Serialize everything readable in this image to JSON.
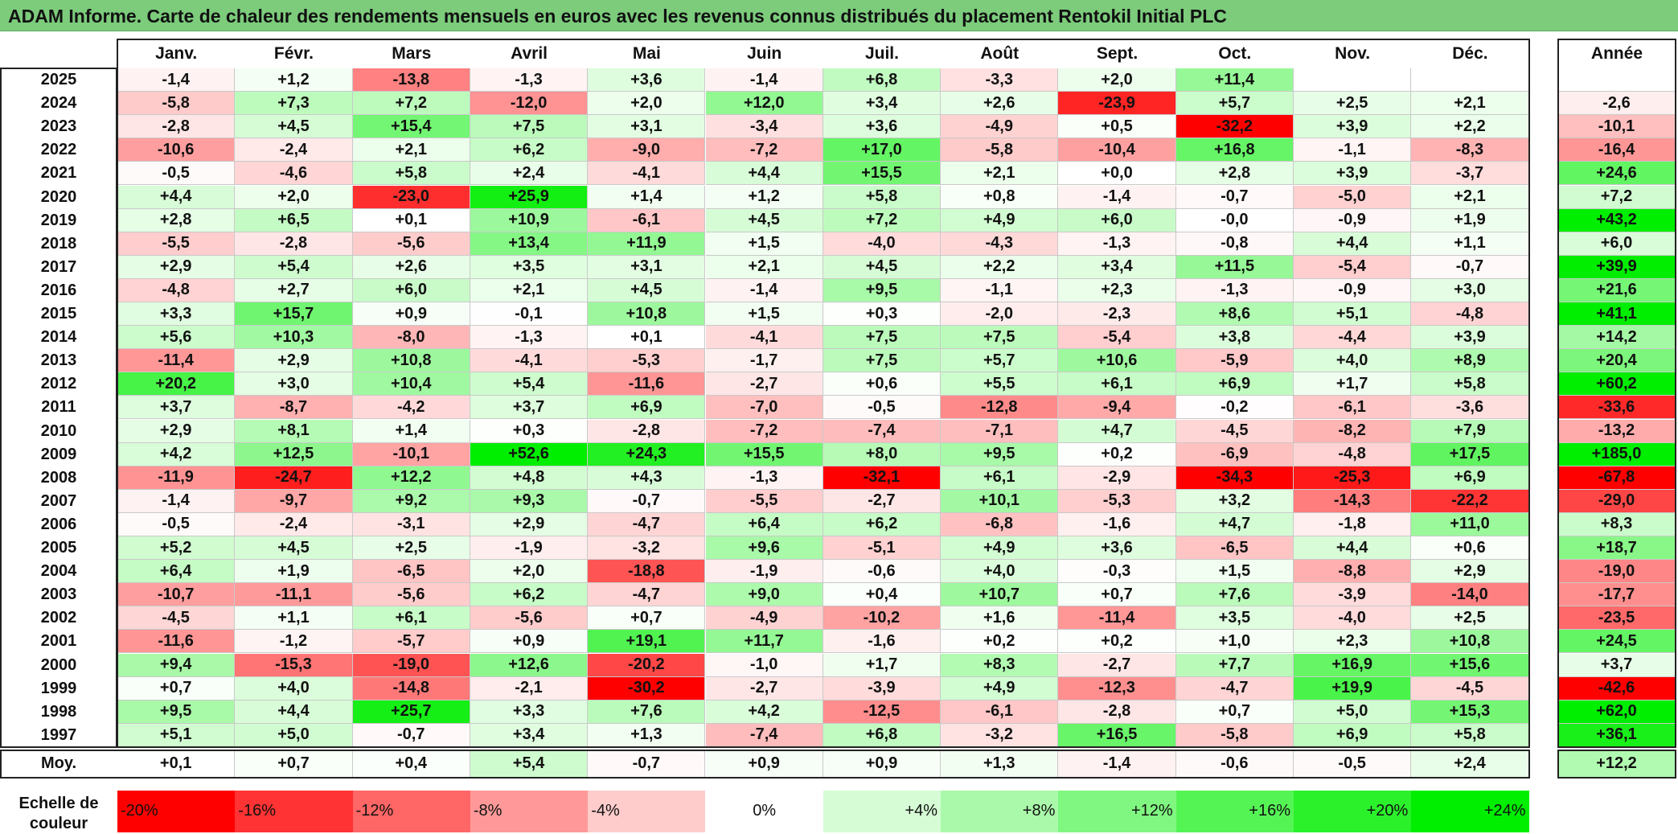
{
  "title": "ADAM Informe. Carte de chaleur des rendements mensuels en euros avec les revenus connus distribués du placement Rentokil Initial PLC",
  "chart_data": {
    "type": "heatmap",
    "months": [
      "Janv.",
      "Févr.",
      "Mars",
      "Avril",
      "Mai",
      "Juin",
      "Juil.",
      "Août",
      "Sept.",
      "Oct.",
      "Nov.",
      "Déc."
    ],
    "year_header": "Année",
    "rows": [
      {
        "year": "2025",
        "values": [
          "-1,4",
          "+1,2",
          "-13,8",
          "-1,3",
          "+3,6",
          "-1,4",
          "+6,8",
          "-3,3",
          "+2,0",
          "+11,4",
          "",
          ""
        ],
        "annual": ""
      },
      {
        "year": "2024",
        "values": [
          "-5,8",
          "+7,3",
          "+7,2",
          "-12,0",
          "+2,0",
          "+12,0",
          "+3,4",
          "+2,6",
          "-23,9",
          "+5,7",
          "+2,5",
          "+2,1"
        ],
        "annual": "-2,6"
      },
      {
        "year": "2023",
        "values": [
          "-2,8",
          "+4,5",
          "+15,4",
          "+7,5",
          "+3,1",
          "-3,4",
          "+3,6",
          "-4,9",
          "+0,5",
          "-32,2",
          "+3,9",
          "+2,2"
        ],
        "annual": "-10,1"
      },
      {
        "year": "2022",
        "values": [
          "-10,6",
          "-2,4",
          "+2,1",
          "+6,2",
          "-9,0",
          "-7,2",
          "+17,0",
          "-5,8",
          "-10,4",
          "+16,8",
          "-1,1",
          "-8,3"
        ],
        "annual": "-16,4"
      },
      {
        "year": "2021",
        "values": [
          "-0,5",
          "-4,6",
          "+5,8",
          "+2,4",
          "-4,1",
          "+4,4",
          "+15,5",
          "+2,1",
          "+0,0",
          "+2,8",
          "+3,9",
          "-3,7"
        ],
        "annual": "+24,6"
      },
      {
        "year": "2020",
        "values": [
          "+4,4",
          "+2,0",
          "-23,0",
          "+25,9",
          "+1,4",
          "+1,2",
          "+5,8",
          "+0,8",
          "-1,4",
          "-0,7",
          "-5,0",
          "+2,1"
        ],
        "annual": "+7,2"
      },
      {
        "year": "2019",
        "values": [
          "+2,8",
          "+6,5",
          "+0,1",
          "+10,9",
          "-6,1",
          "+4,5",
          "+7,2",
          "+4,9",
          "+6,0",
          "-0,0",
          "-0,9",
          "+1,9"
        ],
        "annual": "+43,2"
      },
      {
        "year": "2018",
        "values": [
          "-5,5",
          "-2,8",
          "-5,6",
          "+13,4",
          "+11,9",
          "+1,5",
          "-4,0",
          "-4,3",
          "-1,3",
          "-0,8",
          "+4,4",
          "+1,1"
        ],
        "annual": "+6,0"
      },
      {
        "year": "2017",
        "values": [
          "+2,9",
          "+5,4",
          "+2,6",
          "+3,5",
          "+3,1",
          "+2,1",
          "+4,5",
          "+2,2",
          "+3,4",
          "+11,5",
          "-5,4",
          "-0,7"
        ],
        "annual": "+39,9"
      },
      {
        "year": "2016",
        "values": [
          "-4,8",
          "+2,7",
          "+6,0",
          "+2,1",
          "+4,5",
          "-1,4",
          "+9,5",
          "-1,1",
          "+2,3",
          "-1,3",
          "-0,9",
          "+3,0"
        ],
        "annual": "+21,6"
      },
      {
        "year": "2015",
        "values": [
          "+3,3",
          "+15,7",
          "+0,9",
          "-0,1",
          "+10,8",
          "+1,5",
          "+0,3",
          "-2,0",
          "-2,3",
          "+8,6",
          "+5,1",
          "-4,8"
        ],
        "annual": "+41,1"
      },
      {
        "year": "2014",
        "values": [
          "+5,6",
          "+10,3",
          "-8,0",
          "-1,3",
          "+0,1",
          "-4,1",
          "+7,5",
          "+7,5",
          "-5,4",
          "+3,8",
          "-4,4",
          "+3,9"
        ],
        "annual": "+14,2"
      },
      {
        "year": "2013",
        "values": [
          "-11,4",
          "+2,9",
          "+10,8",
          "-4,1",
          "-5,3",
          "-1,7",
          "+7,5",
          "+5,7",
          "+10,6",
          "-5,9",
          "+4,0",
          "+8,9"
        ],
        "annual": "+20,4"
      },
      {
        "year": "2012",
        "values": [
          "+20,2",
          "+3,0",
          "+10,4",
          "+5,4",
          "-11,6",
          "-2,7",
          "+0,6",
          "+5,5",
          "+6,1",
          "+6,9",
          "+1,7",
          "+5,8"
        ],
        "annual": "+60,2"
      },
      {
        "year": "2011",
        "values": [
          "+3,7",
          "-8,7",
          "-4,2",
          "+3,7",
          "+6,9",
          "-7,0",
          "-0,5",
          "-12,8",
          "-9,4",
          "-0,2",
          "-6,1",
          "-3,6"
        ],
        "annual": "-33,6"
      },
      {
        "year": "2010",
        "values": [
          "+2,9",
          "+8,1",
          "+1,4",
          "+0,3",
          "-2,8",
          "-7,2",
          "-7,4",
          "-7,1",
          "+4,7",
          "-4,5",
          "-8,2",
          "+7,9"
        ],
        "annual": "-13,2"
      },
      {
        "year": "2009",
        "values": [
          "+4,2",
          "+12,5",
          "-10,1",
          "+52,6",
          "+24,3",
          "+15,5",
          "+8,0",
          "+9,5",
          "+0,2",
          "-6,9",
          "-4,8",
          "+17,5"
        ],
        "annual": "+185,0"
      },
      {
        "year": "2008",
        "values": [
          "-11,9",
          "-24,7",
          "+12,2",
          "+4,8",
          "+4,3",
          "-1,3",
          "-32,1",
          "+6,1",
          "-2,9",
          "-34,3",
          "-25,3",
          "+6,9"
        ],
        "annual": "-67,8"
      },
      {
        "year": "2007",
        "values": [
          "-1,4",
          "-9,7",
          "+9,2",
          "+9,3",
          "-0,7",
          "-5,5",
          "-2,7",
          "+10,1",
          "-5,3",
          "+3,2",
          "-14,3",
          "-22,2"
        ],
        "annual": "-29,0"
      },
      {
        "year": "2006",
        "values": [
          "-0,5",
          "-2,4",
          "-3,1",
          "+2,9",
          "-4,7",
          "+6,4",
          "+6,2",
          "-6,8",
          "-1,6",
          "+4,7",
          "-1,8",
          "+11,0"
        ],
        "annual": "+8,3"
      },
      {
        "year": "2005",
        "values": [
          "+5,2",
          "+4,5",
          "+2,5",
          "-1,9",
          "-3,2",
          "+9,6",
          "-5,1",
          "+4,9",
          "+3,6",
          "-6,5",
          "+4,4",
          "+0,6"
        ],
        "annual": "+18,7"
      },
      {
        "year": "2004",
        "values": [
          "+6,4",
          "+1,9",
          "-6,5",
          "+2,0",
          "-18,8",
          "-1,9",
          "-0,6",
          "+4,0",
          "-0,3",
          "+1,5",
          "-8,8",
          "+2,9"
        ],
        "annual": "-19,0"
      },
      {
        "year": "2003",
        "values": [
          "-10,7",
          "-11,1",
          "-5,6",
          "+6,2",
          "-4,7",
          "+9,0",
          "+0,4",
          "+10,7",
          "+0,7",
          "+7,6",
          "-3,9",
          "-14,0"
        ],
        "annual": "-17,7"
      },
      {
        "year": "2002",
        "values": [
          "-4,5",
          "+1,1",
          "+6,1",
          "-5,6",
          "+0,7",
          "-4,9",
          "-10,2",
          "+1,6",
          "-11,4",
          "+3,5",
          "-4,0",
          "+2,5"
        ],
        "annual": "-23,5"
      },
      {
        "year": "2001",
        "values": [
          "-11,6",
          "-1,2",
          "-5,7",
          "+0,9",
          "+19,1",
          "+11,7",
          "-1,6",
          "+0,2",
          "+0,2",
          "+1,0",
          "+2,3",
          "+10,8"
        ],
        "annual": "+24,5"
      },
      {
        "year": "2000",
        "values": [
          "+9,4",
          "-15,3",
          "-19,0",
          "+12,6",
          "-20,2",
          "-1,0",
          "+1,7",
          "+8,3",
          "-2,7",
          "+7,7",
          "+16,9",
          "+15,6"
        ],
        "annual": "+3,7"
      },
      {
        "year": "1999",
        "values": [
          "+0,7",
          "+4,0",
          "-14,8",
          "-2,1",
          "-30,2",
          "-2,7",
          "-3,9",
          "+4,9",
          "-12,3",
          "-4,7",
          "+19,9",
          "-4,5"
        ],
        "annual": "-42,6"
      },
      {
        "year": "1998",
        "values": [
          "+9,5",
          "+4,4",
          "+25,7",
          "+3,3",
          "+7,6",
          "+4,2",
          "-12,5",
          "-6,1",
          "-2,8",
          "+0,7",
          "+5,0",
          "+15,3"
        ],
        "annual": "+62,0"
      },
      {
        "year": "1997",
        "values": [
          "+5,1",
          "+5,0",
          "-0,7",
          "+3,4",
          "+1,3",
          "-7,4",
          "+6,8",
          "-3,2",
          "+16,5",
          "-5,8",
          "+6,9",
          "+5,8"
        ],
        "annual": "+36,1"
      }
    ],
    "average": {
      "label": "Moy.",
      "values": [
        "+0,1",
        "+0,7",
        "+0,4",
        "+5,4",
        "-0,7",
        "+0,9",
        "+0,9",
        "+1,3",
        "-1,4",
        "-0,6",
        "-0,5",
        "+2,4"
      ],
      "annual": "+12,2"
    },
    "color_scale": {
      "label": "Echelle de couleur",
      "stops": [
        "-20%",
        "-16%",
        "-12%",
        "-8%",
        "-4%",
        "0%",
        "+4%",
        "+8%",
        "+12%",
        "+16%",
        "+20%",
        "+24%"
      ],
      "negative_color": "#ff0000",
      "positive_color": "#00ee00",
      "neutral_color": "#ffffff"
    }
  }
}
